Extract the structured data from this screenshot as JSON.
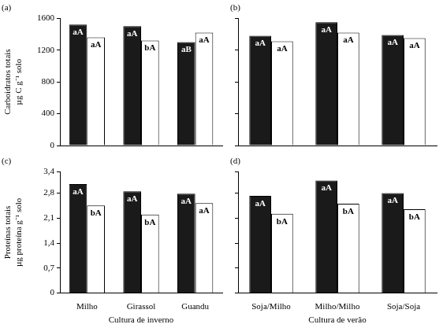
{
  "chart_data": [
    {
      "type": "bar",
      "title": "(a)",
      "y_label": [
        "Carboidratos totais",
        "µg C g⁻¹ solo"
      ],
      "categories": [
        null,
        null,
        null
      ],
      "series": [
        {
          "color": "#1a1a1a",
          "values": [
            1520,
            1500,
            1300
          ],
          "annotations": [
            "aA",
            "aA",
            "aB"
          ]
        },
        {
          "color": "#ffffff",
          "values": [
            1360,
            1320,
            1420
          ],
          "annotations": [
            "aA",
            "bA",
            "aA"
          ]
        }
      ],
      "ylim": [
        0,
        1600
      ],
      "yticks": [
        0,
        400,
        800,
        1200,
        1600
      ],
      "grid": false,
      "tick_labels": "y"
    },
    {
      "type": "bar",
      "title": "(b)",
      "categories": [
        null,
        null,
        null
      ],
      "series": [
        {
          "color": "#1a1a1a",
          "values": [
            1380,
            1550,
            1390
          ],
          "annotations": [
            "aA",
            "aA",
            "aA"
          ]
        },
        {
          "color": "#ffffff",
          "values": [
            1310,
            1420,
            1350
          ],
          "annotations": [
            "aA",
            "aA",
            "aA"
          ]
        }
      ],
      "ylim": [
        0,
        1600
      ],
      "yticks": [
        0,
        400,
        800,
        1200,
        1600
      ],
      "grid": false,
      "tick_labels": false
    },
    {
      "type": "bar",
      "title": "(c)",
      "y_label": [
        "Proteínas totais",
        "µg proteína g⁻¹ solo"
      ],
      "x_label": "Cultura de inverno",
      "categories": [
        "Milho",
        "Girassol",
        "Guandu"
      ],
      "series": [
        {
          "color": "#1a1a1a",
          "values": [
            3.05,
            2.85,
            2.78
          ],
          "annotations": [
            "aA",
            "aA",
            "aA"
          ]
        },
        {
          "color": "#ffffff",
          "values": [
            2.45,
            2.2,
            2.52
          ],
          "annotations": [
            "bA",
            "bA",
            "aA"
          ]
        }
      ],
      "ylim": [
        0,
        3.4
      ],
      "yticks": [
        0,
        {
          "value": 0.7,
          "label": "0,7"
        },
        {
          "value": 1.4,
          "label": "1,4"
        },
        {
          "value": 2.1,
          "label": "2,1"
        },
        {
          "value": 2.8,
          "label": "2,8"
        },
        {
          "value": 3.4,
          "label": "3,4"
        }
      ],
      "grid": false
    },
    {
      "type": "bar",
      "title": "(d)",
      "x_label": "Cultura de verão",
      "categories": [
        "Soja/Milho",
        "Milho/Milho",
        "Soja/Soja"
      ],
      "series": [
        {
          "color": "#1a1a1a",
          "values": [
            2.72,
            3.15,
            2.8
          ],
          "annotations": [
            "aA",
            "aA",
            "aA"
          ]
        },
        {
          "color": "#ffffff",
          "values": [
            2.22,
            2.5,
            2.35
          ],
          "annotations": [
            "bA",
            "bA",
            "bA"
          ]
        }
      ],
      "ylim": [
        0,
        3.4
      ],
      "yticks": [
        0,
        {
          "value": 0.7,
          "label": "0,7"
        },
        {
          "value": 1.4,
          "label": "1,4"
        },
        {
          "value": 2.1,
          "label": "2,1"
        },
        {
          "value": 2.8,
          "label": "2,8"
        },
        {
          "value": 3.4,
          "label": "3,4"
        }
      ],
      "grid": false,
      "tick_labels": "x"
    }
  ]
}
